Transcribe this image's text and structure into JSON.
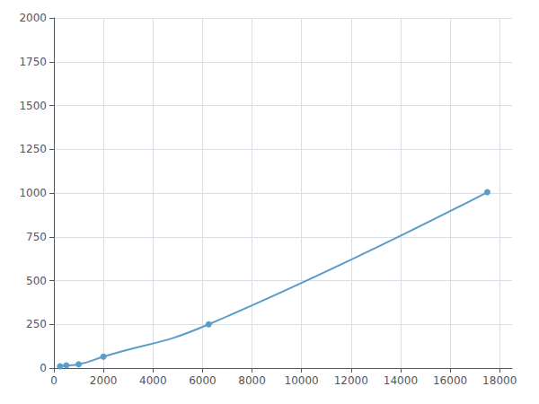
{
  "chart_data": {
    "type": "line",
    "x": [
      250,
      500,
      1000,
      2000,
      6250,
      17500
    ],
    "values": [
      10,
      15,
      22,
      65,
      250,
      1005
    ],
    "color": "#5b9dc9",
    "marker": "circle",
    "xlim": [
      0,
      18500
    ],
    "ylim": [
      0,
      2000
    ],
    "xticks": [
      0,
      2000,
      4000,
      6000,
      8000,
      10000,
      12000,
      14000,
      16000,
      18000
    ],
    "yticks": [
      0,
      250,
      500,
      750,
      1000,
      1250,
      1500,
      1750,
      2000
    ],
    "grid": true
  }
}
